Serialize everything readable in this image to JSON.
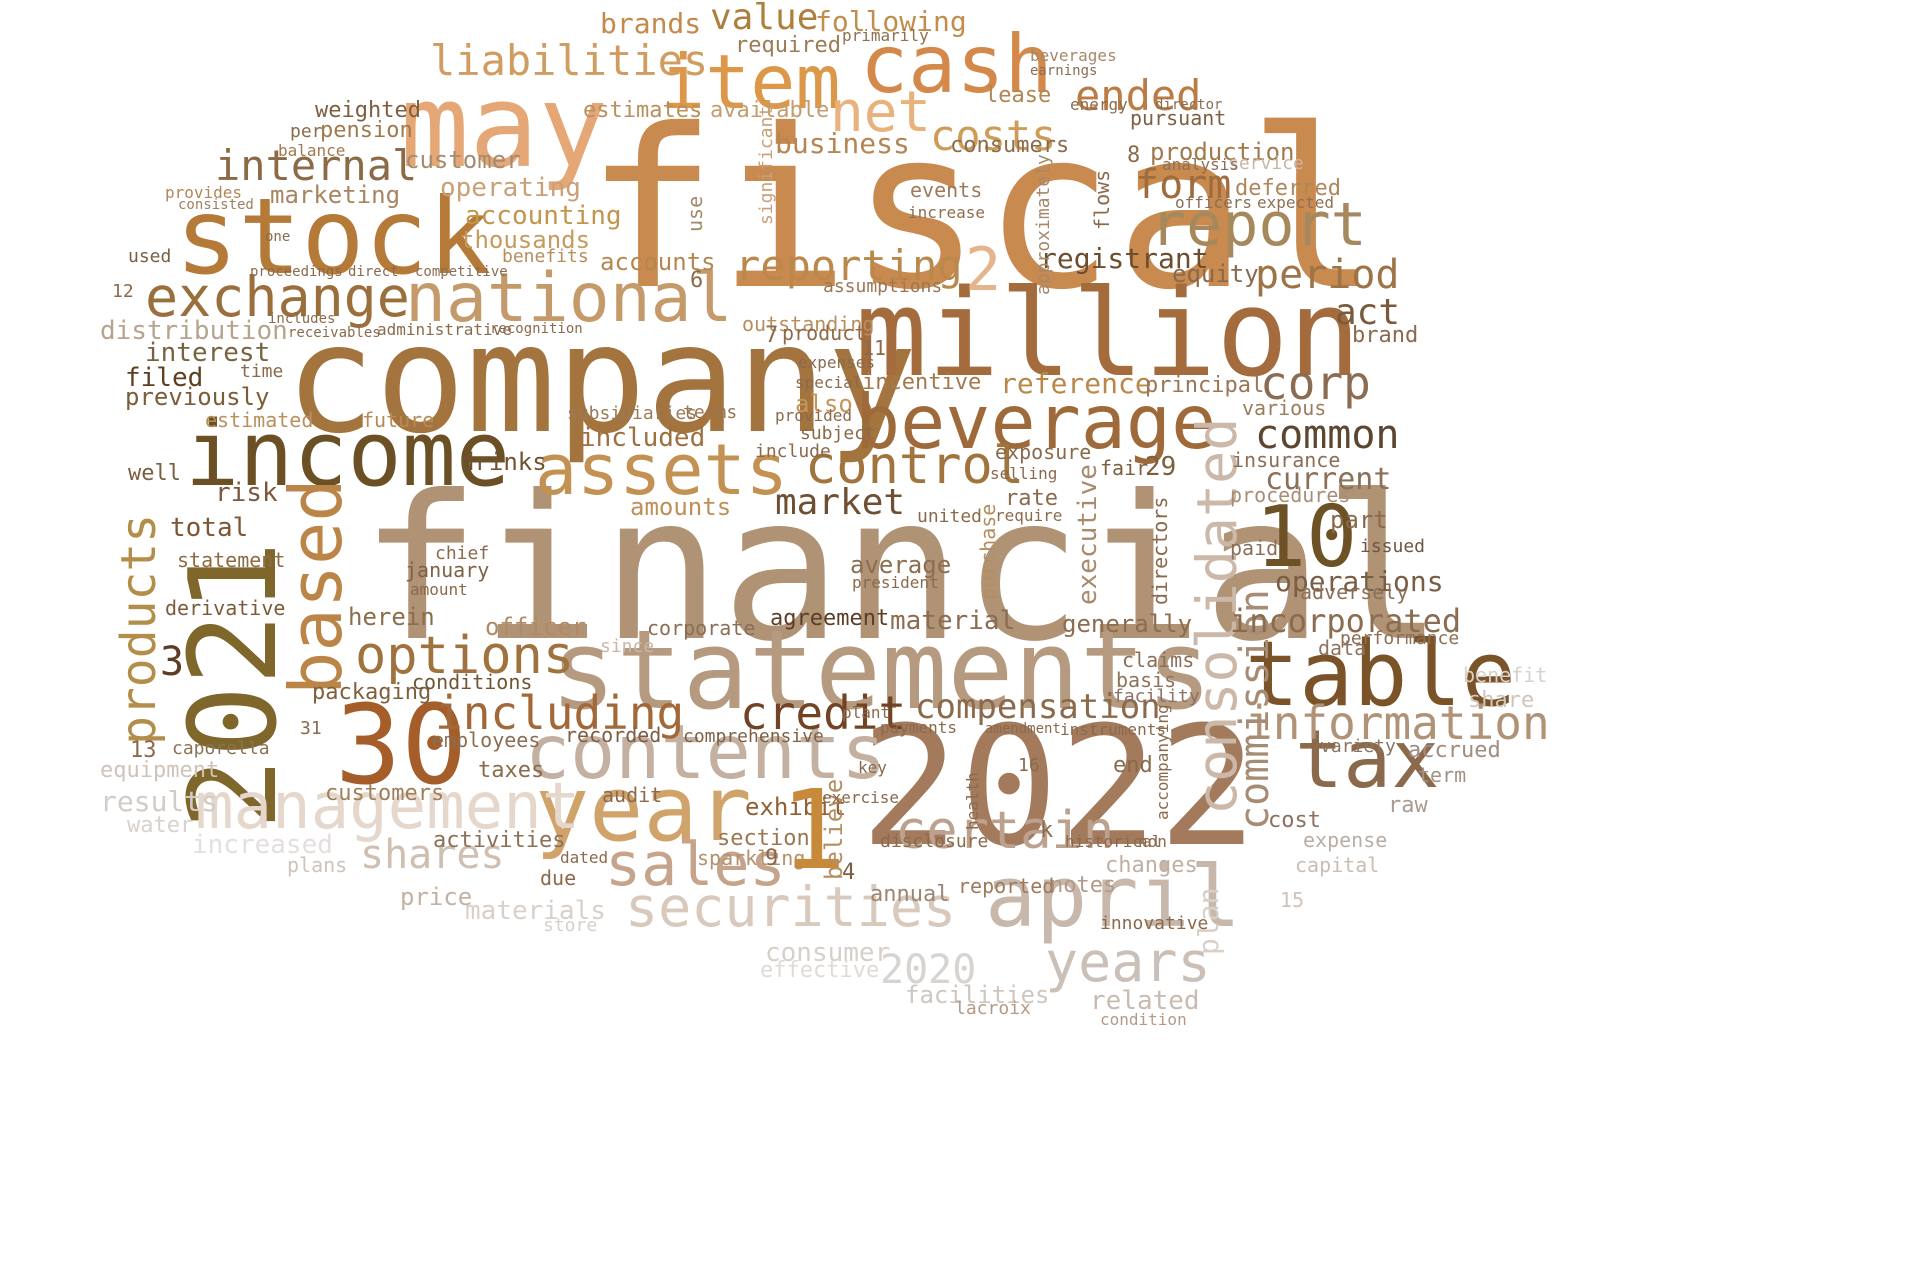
{
  "words": [
    {
      "t": "fiscal",
      "c": "#c98a4f"
    },
    {
      "t": "financial",
      "c": "#b09275"
    },
    {
      "t": "company",
      "c": "#a4743f"
    },
    {
      "t": "2022",
      "c": "#a47a5d"
    },
    {
      "t": "statements",
      "c": "#b59a80"
    },
    {
      "t": "million",
      "c": "#a46b3c"
    },
    {
      "t": "may",
      "c": "#e4a775"
    },
    {
      "t": "stock",
      "c": "#b57a38"
    },
    {
      "t": "income",
      "c": "#6b5025"
    },
    {
      "t": "2021",
      "c": "#7f672b"
    },
    {
      "t": "cash",
      "c": "#d4894a"
    },
    {
      "t": "item",
      "c": "#dc9748"
    },
    {
      "t": "beverage",
      "c": "#9f6a3a"
    },
    {
      "t": "national",
      "c": "#c49a6b"
    },
    {
      "t": "exchange",
      "c": "#9a6f3c"
    },
    {
      "t": "table",
      "c": "#7b5328"
    },
    {
      "t": "30",
      "c": "#a55d29"
    },
    {
      "t": "year",
      "c": "#d0a36b"
    },
    {
      "t": "contents",
      "c": "#c4b0a0"
    },
    {
      "t": "april",
      "c": "#c8b8ac"
    },
    {
      "t": "tax",
      "c": "#8b6a4c"
    },
    {
      "t": "assets",
      "c": "#c39152"
    },
    {
      "t": "based",
      "c": "#bb8548"
    },
    {
      "t": "management",
      "c": "#e5d7cb"
    },
    {
      "t": "years",
      "c": "#cac0b8"
    },
    {
      "t": "securities",
      "c": "#d8c9bc"
    },
    {
      "t": "sales",
      "c": "#c6a38b"
    },
    {
      "t": "10",
      "c": "#6d5225"
    },
    {
      "t": "report",
      "c": "#a5885c"
    },
    {
      "t": "consolidated",
      "c": "#cbb8a8"
    },
    {
      "t": "control",
      "c": "#a2743d"
    },
    {
      "t": "options",
      "c": "#a0733e"
    },
    {
      "t": "certain",
      "c": "#bca28e"
    },
    {
      "t": "credit",
      "c": "#724224"
    },
    {
      "t": "including",
      "c": "#a36838"
    },
    {
      "t": "products",
      "c": "#b38e4a"
    },
    {
      "t": "information",
      "c": "#b09276"
    },
    {
      "t": "net",
      "c": "#e9b27c"
    },
    {
      "t": "liabilities",
      "c": "#d19c60"
    },
    {
      "t": "ended",
      "c": "#bb7c44"
    },
    {
      "t": "internal",
      "c": "#8b6a45"
    },
    {
      "t": "costs",
      "c": "#cf9c58"
    },
    {
      "t": "reporting",
      "c": "#bb884b"
    },
    {
      "t": "corp",
      "c": "#8b6c52"
    },
    {
      "t": "common",
      "c": "#5d4630"
    },
    {
      "t": "period",
      "c": "#9e7446"
    },
    {
      "t": "form",
      "c": "#9f6c3d"
    },
    {
      "t": "value",
      "c": "#ae7f3c"
    },
    {
      "t": "market",
      "c": "#6f4f32"
    },
    {
      "t": "compensation",
      "c": "#8b6a4c"
    },
    {
      "t": "commission",
      "c": "#a68c74"
    },
    {
      "t": "shares",
      "c": "#cfbfb1"
    },
    {
      "t": "2020",
      "c": "#d7d3d0"
    },
    {
      "t": "brands",
      "c": "#c38a4c"
    },
    {
      "t": "following",
      "c": "#c18e4d"
    },
    {
      "t": "business",
      "c": "#b48654"
    },
    {
      "t": "registrant",
      "c": "#6c4e2f"
    },
    {
      "t": "act",
      "c": "#7a5a3c"
    },
    {
      "t": "incorporated",
      "c": "#8b6c50"
    },
    {
      "t": "operations",
      "c": "#7a5d45"
    },
    {
      "t": "current",
      "c": "#8b7058"
    },
    {
      "t": "customer",
      "c": "#a58b70"
    },
    {
      "t": "operating",
      "c": "#c9a077"
    },
    {
      "t": "accounting",
      "c": "#c1954c"
    },
    {
      "t": "thousands",
      "c": "#c69a5c"
    },
    {
      "t": "accounts",
      "c": "#b4874e"
    },
    {
      "t": "interest",
      "c": "#776340"
    },
    {
      "t": "distribution",
      "c": "#b5a58e"
    },
    {
      "t": "filed",
      "c": "#5c3f20"
    },
    {
      "t": "previously",
      "c": "#7a5d39"
    },
    {
      "t": "marketing",
      "c": "#a7865f"
    },
    {
      "t": "weighted",
      "c": "#7c5f3e"
    },
    {
      "t": "pension",
      "c": "#9f7a4f"
    },
    {
      "t": "estimates",
      "c": "#b9905c"
    },
    {
      "t": "available",
      "c": "#c19d6f"
    },
    {
      "t": "required",
      "c": "#9c7b55"
    },
    {
      "t": "production",
      "c": "#a17a4b"
    },
    {
      "t": "consumers",
      "c": "#8b6d4d"
    },
    {
      "t": "deferred",
      "c": "#b0865a"
    },
    {
      "t": "reference",
      "c": "#b98747"
    },
    {
      "t": "principal",
      "c": "#9a7654"
    },
    {
      "t": "drinks",
      "c": "#6f5230"
    },
    {
      "t": "included",
      "c": "#9d7040"
    },
    {
      "t": "amounts",
      "c": "#c08f56"
    },
    {
      "t": "total",
      "c": "#7c5635"
    },
    {
      "t": "risk",
      "c": "#7a5a3c"
    },
    {
      "t": "officer",
      "c": "#b08a63"
    },
    {
      "t": "herein",
      "c": "#8c6e4c"
    },
    {
      "t": "packaging",
      "c": "#7f5f3c"
    },
    {
      "t": "material",
      "c": "#8b6c50"
    },
    {
      "t": "agreement",
      "c": "#5c3e26"
    },
    {
      "t": "average",
      "c": "#8b6d52"
    },
    {
      "t": "executive",
      "c": "#a98a6c"
    },
    {
      "t": "exhibit",
      "c": "#915f31"
    },
    {
      "t": "consumer",
      "c": "#d8cfc7"
    },
    {
      "t": "effective",
      "c": "#e0dad6"
    },
    {
      "t": "facilities",
      "c": "#cfc6bf"
    },
    {
      "t": "related",
      "c": "#c9bbb0"
    },
    {
      "t": "materials",
      "c": "#d8d0c9"
    },
    {
      "t": "price",
      "c": "#c2b2a4"
    },
    {
      "t": "results",
      "c": "#d3cbc6"
    },
    {
      "t": "increased",
      "c": "#e4dfdc"
    },
    {
      "t": "water",
      "c": "#d8d1cc"
    },
    {
      "t": "equipment",
      "c": "#cfc3ba"
    },
    {
      "t": "plans",
      "c": "#cfc3ba"
    },
    {
      "t": "activities",
      "c": "#8b7057"
    },
    {
      "t": "customers",
      "c": "#a07e5a"
    },
    {
      "t": "taxes",
      "c": "#8b6a4c"
    },
    {
      "t": "recorded",
      "c": "#7b5d42"
    },
    {
      "t": "employees",
      "c": "#8b6d52"
    },
    {
      "t": "conditions",
      "c": "#6f5535"
    },
    {
      "t": "statement",
      "c": "#8d6b44"
    },
    {
      "t": "derivative",
      "c": "#7a5c3a"
    },
    {
      "t": "caporella",
      "c": "#8a7255"
    },
    {
      "t": "estimated",
      "c": "#b8905c"
    },
    {
      "t": "future",
      "c": "#b88954"
    },
    {
      "t": "subsidiaries",
      "c": "#9b7a57"
    },
    {
      "t": "terms",
      "c": "#9b7550"
    },
    {
      "t": "also",
      "c": "#c49559"
    },
    {
      "t": "incentive",
      "c": "#a4784d"
    },
    {
      "t": "outstanding",
      "c": "#b88e5e"
    },
    {
      "t": "product",
      "c": "#8f6a48"
    },
    {
      "t": "assumptions",
      "c": "#9b7755"
    },
    {
      "t": "equity",
      "c": "#8b6a4c"
    },
    {
      "t": "insurance",
      "c": "#8b6e56"
    },
    {
      "t": "procedures",
      "c": "#a98d75"
    },
    {
      "t": "generally",
      "c": "#8d6c50"
    },
    {
      "t": "claims",
      "c": "#8b6e56"
    },
    {
      "t": "basis",
      "c": "#8f735a"
    },
    {
      "t": "facility",
      "c": "#8b7262"
    },
    {
      "t": "changes",
      "c": "#c0b0a3"
    },
    {
      "t": "notes",
      "c": "#b49a86"
    },
    {
      "t": "reported",
      "c": "#9d7a5c"
    },
    {
      "t": "annual",
      "c": "#9c8572"
    },
    {
      "t": "section",
      "c": "#9c7852"
    },
    {
      "t": "sparkling",
      "c": "#b3906e"
    },
    {
      "t": "comprehensive",
      "c": "#7d6246"
    },
    {
      "t": "corporate",
      "c": "#8a6e55"
    },
    {
      "t": "data",
      "c": "#8d7362"
    },
    {
      "t": "performance",
      "c": "#8b6e56"
    },
    {
      "t": "variety",
      "c": "#8d7460"
    },
    {
      "t": "accrued",
      "c": "#a08c80"
    },
    {
      "t": "share",
      "c": "#cfc6bf"
    },
    {
      "t": "benefit",
      "c": "#d7d0cb"
    },
    {
      "t": "term",
      "c": "#a39285"
    },
    {
      "t": "raw",
      "c": "#a89b91"
    },
    {
      "t": "expense",
      "c": "#b9ada4"
    },
    {
      "t": "capital",
      "c": "#c9beb5"
    },
    {
      "t": "cost",
      "c": "#8b7060"
    },
    {
      "t": "paid",
      "c": "#8b7058"
    },
    {
      "t": "issued",
      "c": "#6f5540"
    },
    {
      "t": "adversely",
      "c": "#8b7058"
    },
    {
      "t": "brand",
      "c": "#8b6a4c"
    },
    {
      "t": "various",
      "c": "#9b7c5c"
    },
    {
      "t": "events",
      "c": "#9b7b5a"
    },
    {
      "t": "increase",
      "c": "#8f6d4c"
    },
    {
      "t": "lease",
      "c": "#b08550"
    },
    {
      "t": "pursuant",
      "c": "#7d5f42"
    },
    {
      "t": "service",
      "c": "#c9b6a6"
    },
    {
      "t": "analysis",
      "c": "#8b6f56"
    },
    {
      "t": "officers",
      "c": "#8b6e56"
    },
    {
      "t": "expected",
      "c": "#8d6f54"
    },
    {
      "t": "energy",
      "c": "#8b6a4c"
    },
    {
      "t": "director",
      "c": "#8b6d52"
    },
    {
      "t": "beverages",
      "c": "#a58868"
    },
    {
      "t": "earnings",
      "c": "#8b6d52"
    },
    {
      "t": "primarily",
      "c": "#8f6f4f"
    },
    {
      "t": "interest",
      "c": "#776340"
    },
    {
      "t": "used",
      "c": "#7b5d42"
    },
    {
      "t": "one",
      "c": "#8b6a4c"
    },
    {
      "t": "per",
      "c": "#8b6a4c"
    },
    {
      "t": "balance",
      "c": "#9f7a4f"
    },
    {
      "t": "provides",
      "c": "#b0875a"
    },
    {
      "t": "consisted",
      "c": "#9f805c"
    },
    {
      "t": "benefits",
      "c": "#b58e60"
    },
    {
      "t": "competitive",
      "c": "#8b6d52"
    },
    {
      "t": "administrative",
      "c": "#8b6a4c"
    },
    {
      "t": "recognition",
      "c": "#8b6a4c"
    },
    {
      "t": "proceedings",
      "c": "#8b6a4c"
    },
    {
      "t": "direct",
      "c": "#8b6a4c"
    },
    {
      "t": "receivables",
      "c": "#8b6a4c"
    },
    {
      "t": "includes",
      "c": "#8b6a4c"
    },
    {
      "t": "time",
      "c": "#8b6a4c"
    },
    {
      "t": "well",
      "c": "#7c5f3e"
    },
    {
      "t": "chief",
      "c": "#8b6a4c"
    },
    {
      "t": "january",
      "c": "#7d6246"
    },
    {
      "t": "amount",
      "c": "#8b6a4c"
    },
    {
      "t": "united",
      "c": "#8b6a4c"
    },
    {
      "t": "purchase",
      "c": "#b58e60"
    },
    {
      "t": "rate",
      "c": "#8b6a4c"
    },
    {
      "t": "require",
      "c": "#8b6a4c"
    },
    {
      "t": "exposure",
      "c": "#8b6a4c"
    },
    {
      "t": "selling",
      "c": "#8b6a4c"
    },
    {
      "t": "fair",
      "c": "#7c5f3e"
    },
    {
      "t": "directors",
      "c": "#8b6a4c"
    },
    {
      "t": "part",
      "c": "#8b6a4c"
    },
    {
      "t": "1",
      "c": "#c78a3a"
    },
    {
      "t": "2",
      "c": "#e4b48c"
    },
    {
      "t": "3",
      "c": "#5c3e26"
    },
    {
      "t": "4",
      "c": "#7c5f3e"
    },
    {
      "t": "6",
      "c": "#8b6a4c"
    },
    {
      "t": "7",
      "c": "#8b6a4c"
    },
    {
      "t": "8",
      "c": "#8b6a4c"
    },
    {
      "t": "9",
      "c": "#8b6a4c"
    },
    {
      "t": "11",
      "c": "#8b6a4c"
    },
    {
      "t": "12",
      "c": "#8b6a4c"
    },
    {
      "t": "13",
      "c": "#8b6a4c"
    },
    {
      "t": "15",
      "c": "#cfc3ba"
    },
    {
      "t": "16",
      "c": "#8b6a4c"
    },
    {
      "t": "29",
      "c": "#7c5f3e"
    },
    {
      "t": "31",
      "c": "#8b6a4c"
    },
    {
      "t": "k",
      "c": "#8b6a4c"
    },
    {
      "t": "end",
      "c": "#8b6a4c"
    },
    {
      "t": "due",
      "c": "#8b6a4c"
    },
    {
      "t": "since",
      "c": "#c9b6a6"
    },
    {
      "t": "audit",
      "c": "#8b6a4c"
    },
    {
      "t": "dated",
      "c": "#8b6a4c"
    },
    {
      "t": "believe",
      "c": "#b58e60"
    },
    {
      "t": "plan",
      "c": "#d8cfc7"
    },
    {
      "t": "store",
      "c": "#d8cfc7"
    },
    {
      "t": "innovative",
      "c": "#8b6a4c"
    },
    {
      "t": "lacroix",
      "c": "#b49a86"
    },
    {
      "t": "condition",
      "c": "#b49a86"
    },
    {
      "t": "flows",
      "c": "#8b6a4c"
    },
    {
      "t": "approximately",
      "c": "#a58868"
    },
    {
      "t": "significant",
      "c": "#c9a077"
    },
    {
      "t": "use",
      "c": "#a58868"
    },
    {
      "t": "subject",
      "c": "#8b6a4c"
    },
    {
      "t": "include",
      "c": "#8b6a4c"
    },
    {
      "t": "provided",
      "c": "#8b6a4c"
    },
    {
      "t": "expenses",
      "c": "#8b6a4c"
    },
    {
      "t": "special",
      "c": "#8b6a4c"
    },
    {
      "t": "key",
      "c": "#8b6a4c"
    },
    {
      "t": "exercise",
      "c": "#8b6a4c"
    },
    {
      "t": "disclosure",
      "c": "#8b6a4c"
    },
    {
      "t": "health",
      "c": "#8b6a4c"
    },
    {
      "t": "president",
      "c": "#8b6a4c"
    },
    {
      "t": "plant",
      "c": "#8b6a4c"
    },
    {
      "t": "payments",
      "c": "#8b6a4c"
    },
    {
      "t": "instruments",
      "c": "#8b6a4c"
    },
    {
      "t": "amendment",
      "c": "#8b6a4c"
    },
    {
      "t": "historical",
      "c": "#8b6a4c"
    },
    {
      "t": "non",
      "c": "#8b6a4c"
    },
    {
      "t": "accompanying",
      "c": "#8b6a4c"
    },
    {
      "t": "approximately",
      "c": "#a58868"
    }
  ]
}
